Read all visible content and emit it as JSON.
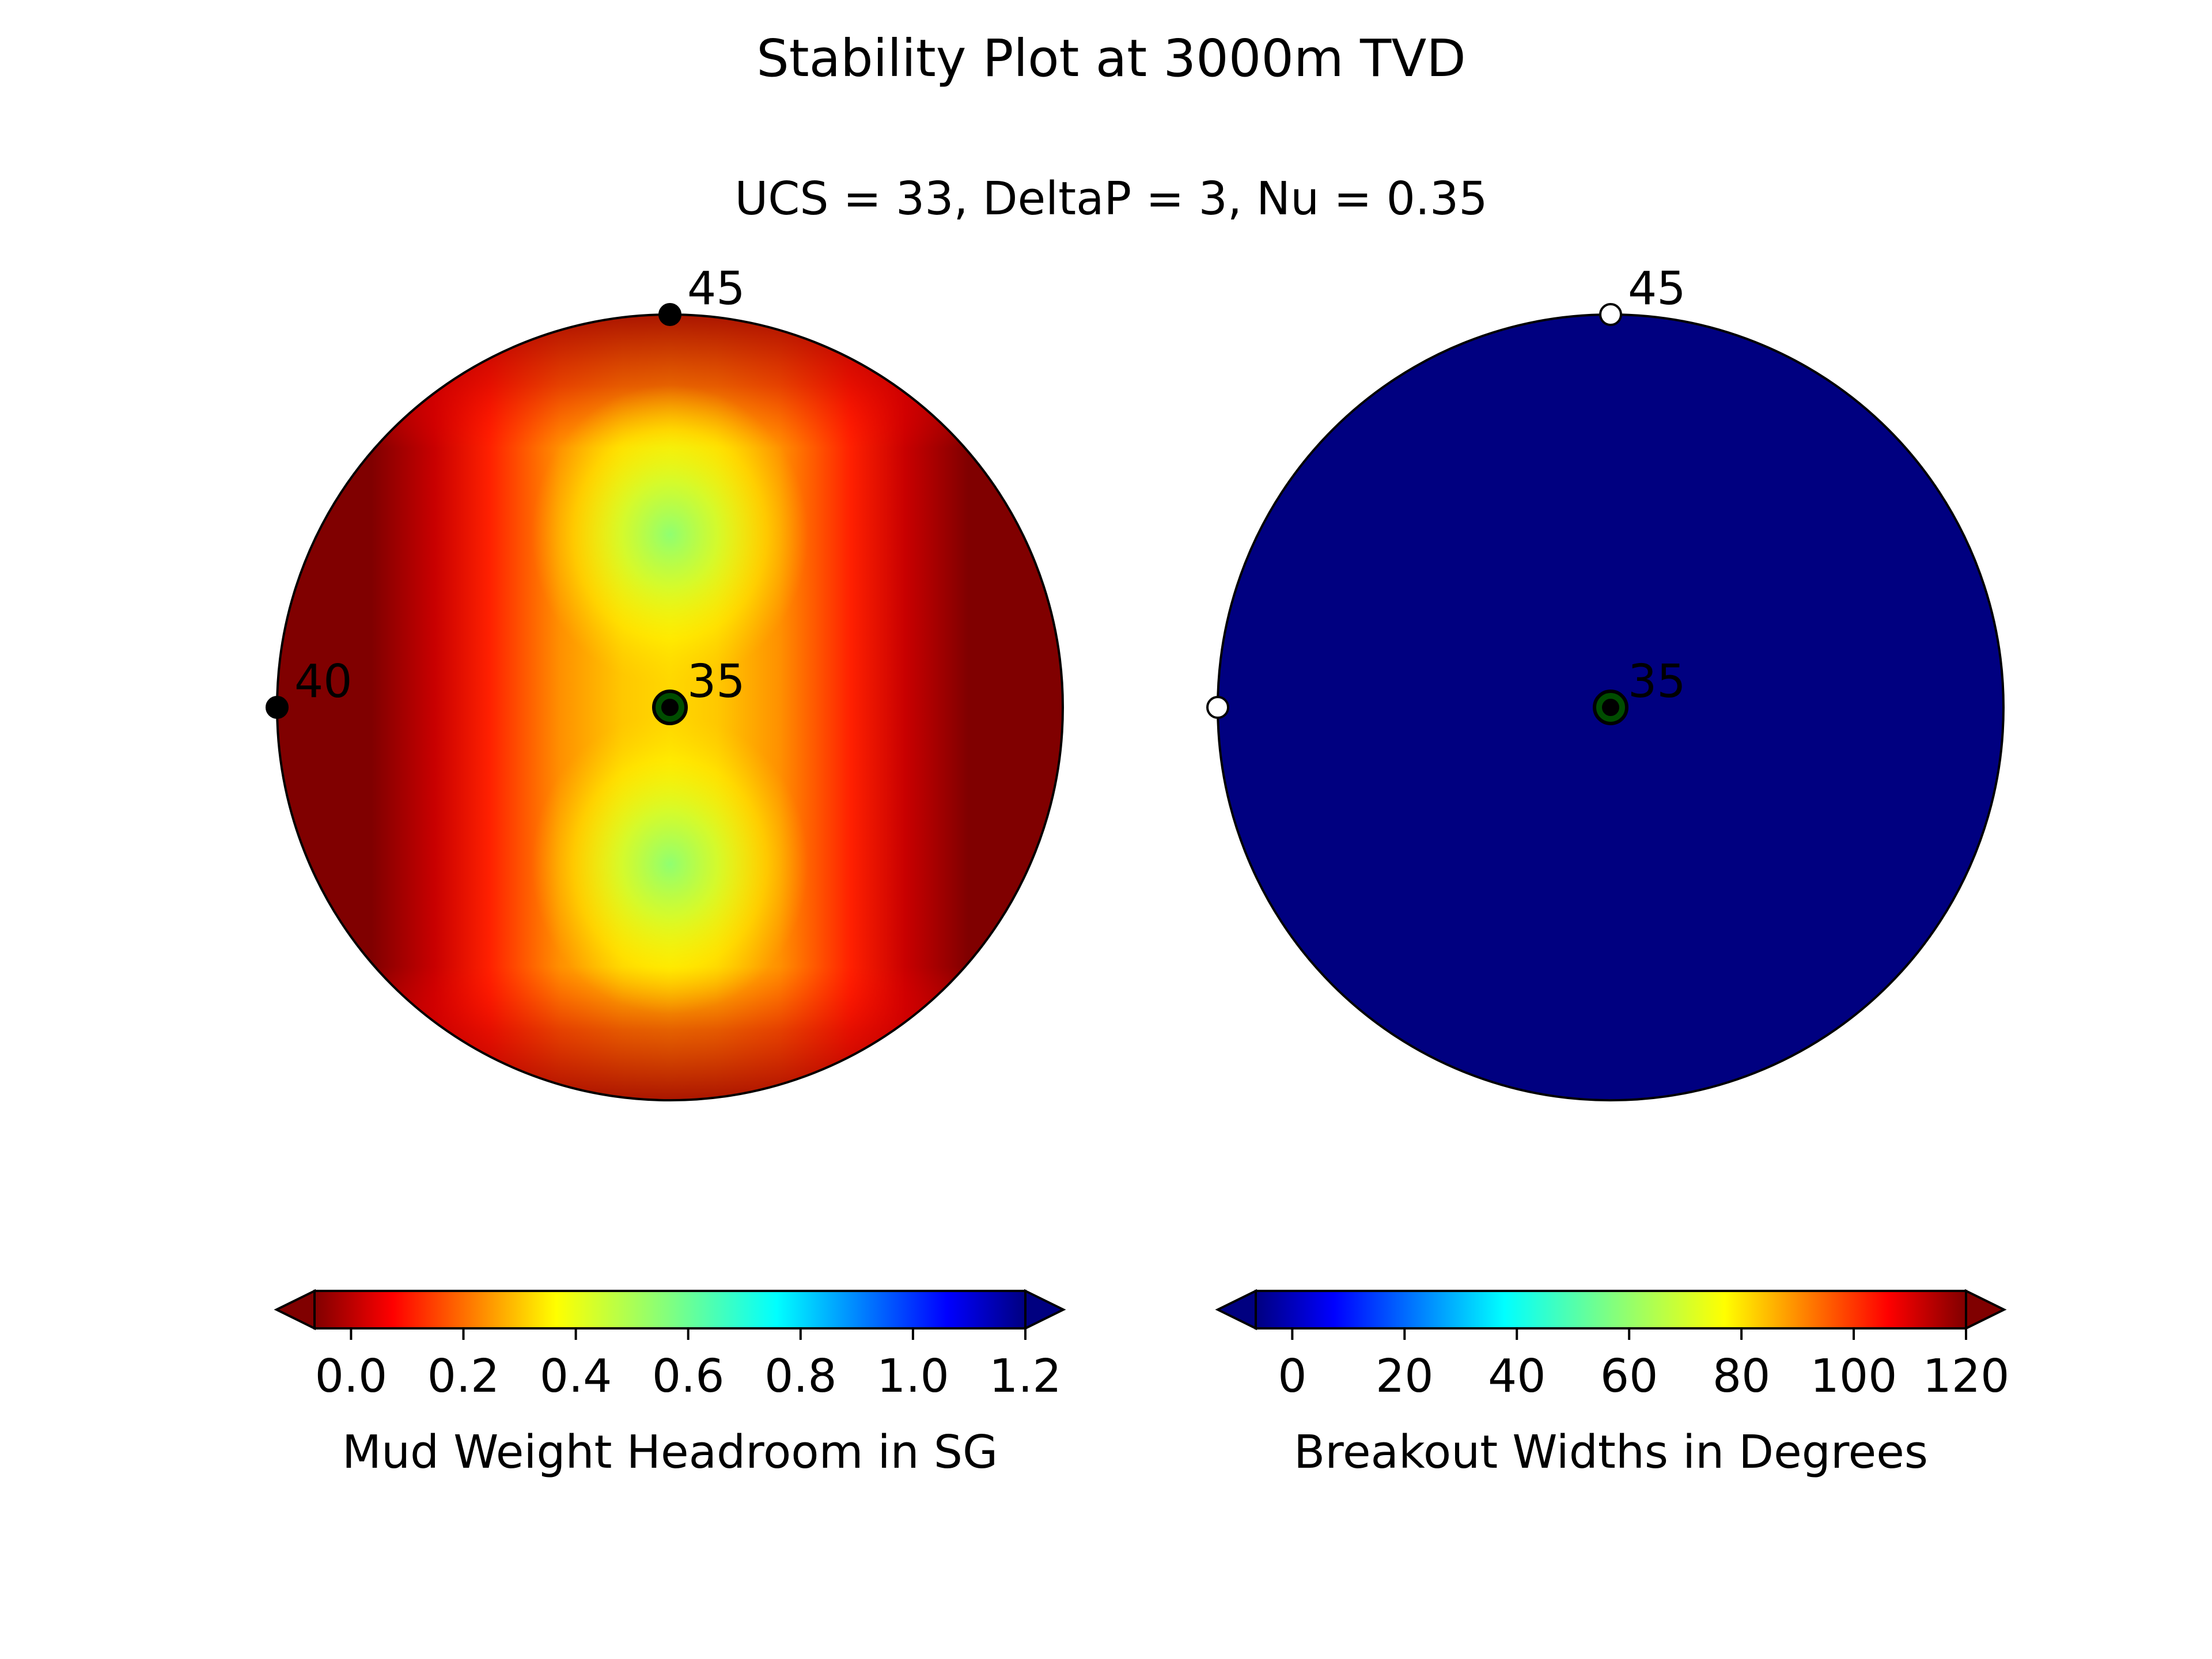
{
  "title": "Stability Plot at 3000m TVD",
  "subtitle": "UCS = 33, DeltaP = 3, Nu = 0.35",
  "chart_data": [
    {
      "type": "heatmap",
      "projection": "polar stereonet",
      "field": "Mud Weight Headroom in SG",
      "colormap": "jet_r",
      "clim": [
        0,
        1.2
      ],
      "extend": "both",
      "field_summary": "0.0 along the outer left and right bands, rising toward the centre line; maxima of about 0.6 at two lobes above and below the centre",
      "markers": [
        {
          "label": "45",
          "color": "#000000",
          "position_desc": "top edge"
        },
        {
          "label": "40",
          "color": "#000000",
          "position_desc": "left edge"
        },
        {
          "label": "35",
          "color": "#000000",
          "position_desc": "centre"
        }
      ],
      "colorbar": {
        "label": "Mud Weight Headroom in SG",
        "ticks": [
          "0.0",
          "0.2",
          "0.4",
          "0.6",
          "0.8",
          "1.0",
          "1.2"
        ],
        "tick_values": [
          0,
          0.2,
          0.4,
          0.6,
          0.8,
          1.0,
          1.2
        ],
        "range": [
          -0.065,
          1.2
        ]
      }
    },
    {
      "type": "heatmap",
      "projection": "polar stereonet",
      "field": "Breakout Widths in Degrees",
      "colormap": "jet",
      "clim": [
        0,
        120
      ],
      "extend": "both",
      "field_summary": "uniform 0 across the whole plot",
      "markers": [
        {
          "label": "45",
          "color": "#ffffff",
          "position_desc": "top edge"
        },
        {
          "label": "",
          "color": "#ffffff",
          "position_desc": "left edge"
        },
        {
          "label": "35",
          "color": "#000000",
          "position_desc": "centre"
        }
      ],
      "colorbar": {
        "label": "Breakout Widths in Degrees",
        "ticks": [
          "0",
          "20",
          "40",
          "60",
          "80",
          "100",
          "120"
        ],
        "tick_values": [
          0,
          20,
          40,
          60,
          80,
          100,
          120
        ],
        "range": [
          -6.5,
          120
        ]
      }
    }
  ],
  "colors": {
    "jet_dark_red": "#800000",
    "jet_dark_blue": "#000080",
    "center_marker_fill": "#004d00"
  }
}
